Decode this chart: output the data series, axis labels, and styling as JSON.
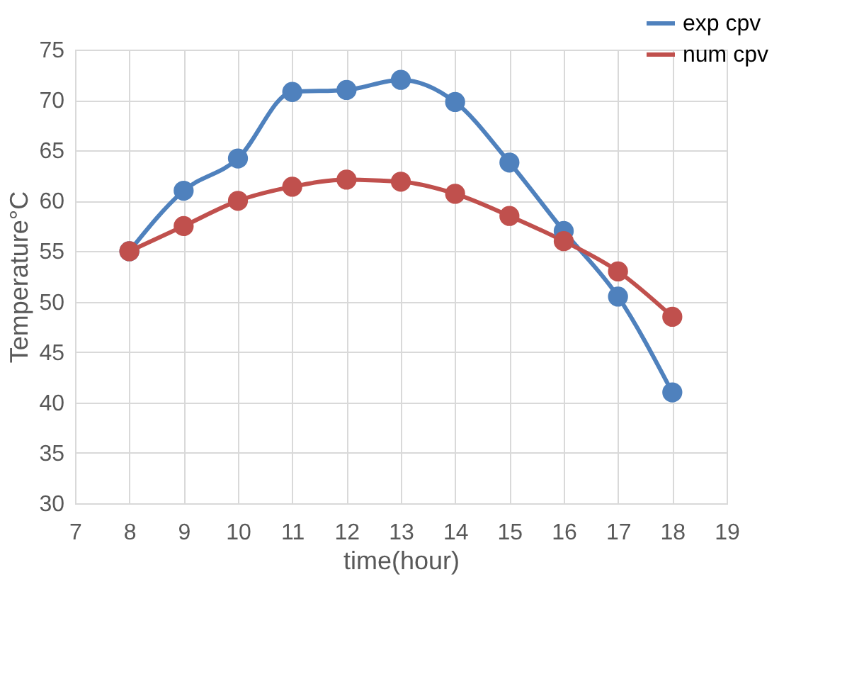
{
  "chart_data": {
    "type": "line",
    "xlabel": "time(hour)",
    "ylabel": "Temperature°C",
    "x": [
      8,
      9,
      10,
      11,
      12,
      13,
      14,
      15,
      16,
      17,
      18
    ],
    "series": [
      {
        "name": "exp cpv",
        "color": "#4f81bd",
        "values": [
          55,
          61,
          64.2,
          70.8,
          71,
          72,
          69.8,
          63.8,
          57,
          50.5,
          41
        ]
      },
      {
        "name": "num cpv",
        "color": "#c0504d",
        "values": [
          55,
          57.5,
          60,
          61.4,
          62.1,
          61.9,
          60.7,
          58.5,
          56,
          53,
          48.5
        ]
      }
    ],
    "xlim": [
      7,
      19
    ],
    "xticks": [
      7,
      8,
      9,
      10,
      11,
      12,
      13,
      14,
      15,
      16,
      17,
      18,
      19
    ],
    "ylim": [
      30,
      75
    ],
    "yticks": [
      30,
      35,
      40,
      45,
      50,
      55,
      60,
      65,
      70,
      75
    ],
    "grid": true,
    "legend": "top right",
    "marker": "circle",
    "line_style": "solid"
  }
}
